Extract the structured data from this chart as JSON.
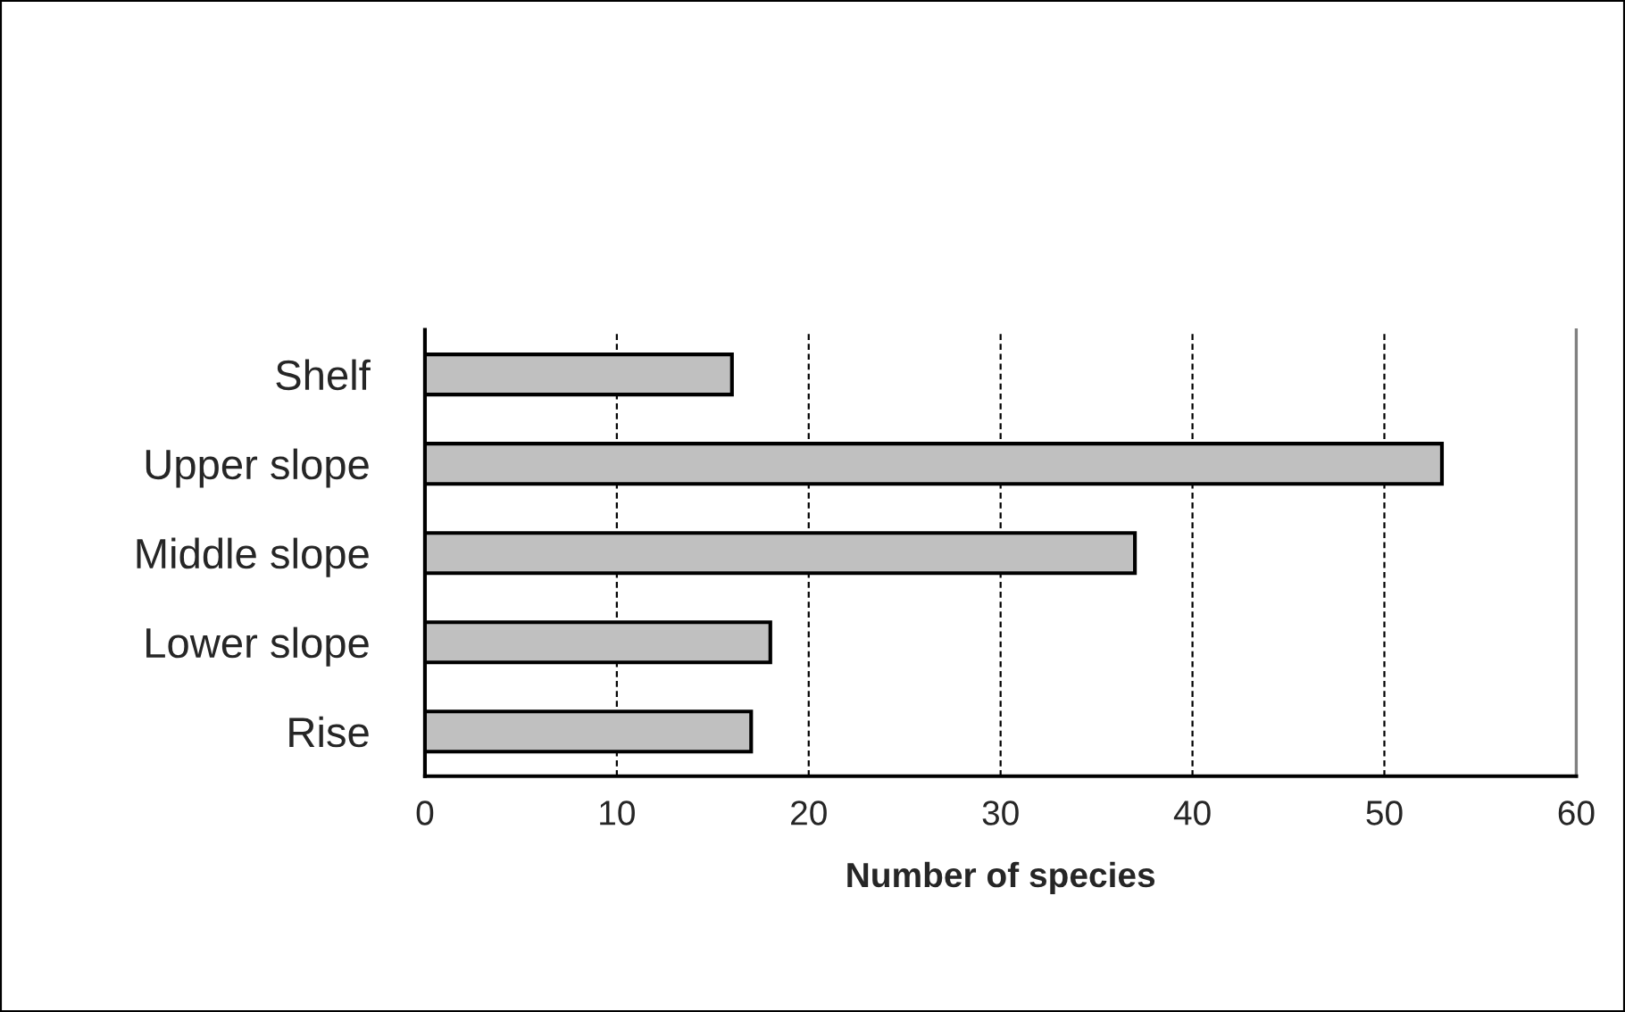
{
  "chart_data": {
    "type": "bar",
    "orientation": "horizontal",
    "xlabel": "Number of species",
    "categories": [
      "Shelf",
      "Upper slope",
      "Middle slope",
      "Lower slope",
      "Rise"
    ],
    "values": [
      16,
      53,
      37,
      18,
      17
    ],
    "color": "#c0c0c0",
    "xlim": [
      0,
      60
    ],
    "xticks": [
      0,
      10,
      20,
      30,
      40,
      50,
      60
    ],
    "grid": "x"
  }
}
